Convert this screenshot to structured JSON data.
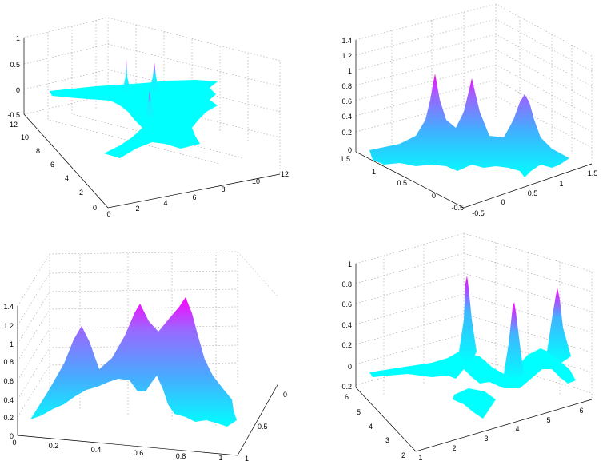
{
  "chart_data": [
    {
      "type": "surface",
      "panel": "top-left",
      "x": {
        "range": [
          0,
          12
        ],
        "ticks": [
          "0",
          "2",
          "4",
          "6",
          "8",
          "10",
          "12"
        ]
      },
      "y": {
        "range": [
          0,
          12
        ],
        "ticks": [
          "0",
          "2",
          "4",
          "6",
          "8",
          "10",
          "12"
        ]
      },
      "z": {
        "range": [
          -0.5,
          1
        ],
        "ticks": [
          "-0.5",
          "0",
          "0.5",
          "1"
        ]
      },
      "grid": true,
      "colormap": [
        "#00ffff",
        "#ff00ff"
      ],
      "peaks": [
        {
          "x": 4,
          "y": 9,
          "z": 0.95
        },
        {
          "x": 6,
          "y": 10,
          "z": 0.95
        },
        {
          "x": 5,
          "y": 6,
          "z": 0.95
        }
      ]
    },
    {
      "type": "surface",
      "panel": "top-right",
      "x": {
        "range": [
          -0.5,
          1.5
        ],
        "ticks": [
          "-0.5",
          "0",
          "0.5",
          "1",
          "1.5"
        ]
      },
      "y": {
        "range": [
          -0.5,
          1.5
        ],
        "ticks": [
          "-0.5",
          "0",
          "0.5",
          "1",
          "1.5"
        ]
      },
      "z": {
        "range": [
          0,
          1.4
        ],
        "ticks": [
          "0",
          "0.2",
          "0.4",
          "0.6",
          "0.8",
          "1",
          "1.2",
          "1.4"
        ]
      },
      "grid": true,
      "colormap": [
        "#00ffff",
        "#ff00ff"
      ],
      "peaks": [
        {
          "x": 0,
          "y": 1,
          "z": 1.0
        },
        {
          "x": 0.5,
          "y": 1.2,
          "z": 0.95
        },
        {
          "x": 1,
          "y": 0.5,
          "z": 0.75
        }
      ]
    },
    {
      "type": "surface",
      "panel": "bottom-left",
      "x": {
        "range": [
          0,
          1
        ],
        "ticks": [
          "0",
          "0.2",
          "0.4",
          "0.6",
          "0.8",
          "1"
        ]
      },
      "y": {
        "range": [
          0,
          1
        ],
        "ticks": [
          "0",
          "0.5",
          "1"
        ]
      },
      "z": {
        "range": [
          0,
          1.4
        ],
        "ticks": [
          "0",
          "0.2",
          "0.4",
          "0.6",
          "0.8",
          "1",
          "1.2",
          "1.4"
        ]
      },
      "grid": true,
      "colormap": [
        "#00ffff",
        "#ff00ff"
      ],
      "peaks": [
        {
          "x": 0.2,
          "y": 0.7,
          "z": 1.0
        },
        {
          "x": 0.5,
          "y": 0.8,
          "z": 1.2
        },
        {
          "x": 0.7,
          "y": 0.9,
          "z": 1.3
        }
      ]
    },
    {
      "type": "surface",
      "panel": "bottom-right",
      "x": {
        "range": [
          1,
          7
        ],
        "ticks": [
          "1",
          "2",
          "3",
          "4",
          "5",
          "6"
        ]
      },
      "y": {
        "range": [
          2,
          6
        ],
        "ticks": [
          "2",
          "3",
          "4",
          "5",
          "6"
        ]
      },
      "z": {
        "range": [
          -0.2,
          1
        ],
        "ticks": [
          "-0.2",
          "0",
          "0.2",
          "0.4",
          "0.6",
          "0.8",
          "1"
        ]
      },
      "grid": true,
      "colormap": [
        "#00ffff",
        "#ff00ff"
      ],
      "peaks": [
        {
          "x": 3,
          "y": 5,
          "z": 0.85
        },
        {
          "x": 4,
          "y": 4,
          "z": 0.7
        },
        {
          "x": 6,
          "y": 5,
          "z": 0.8
        }
      ]
    }
  ]
}
